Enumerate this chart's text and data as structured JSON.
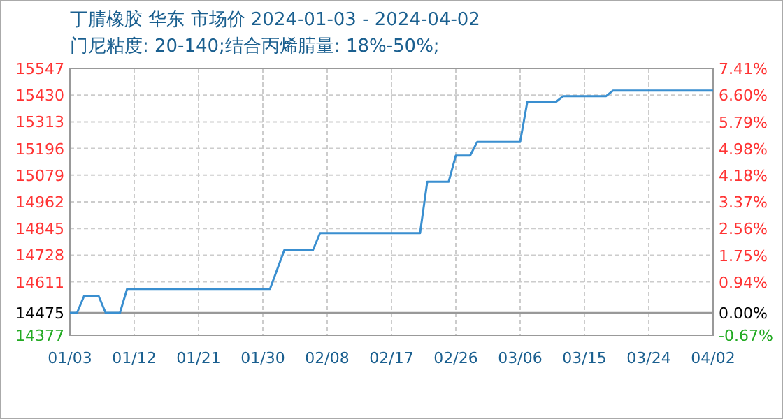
{
  "chart_data": {
    "type": "line",
    "title": "丁腈橡胶 华东 市场价 2024-01-03 - 2024-04-02",
    "subtitle": "门尼粘度: 20-140;结合丙烯腈量: 18%-50%;",
    "x": [
      "2024-01-03",
      "2024-01-04",
      "2024-01-05",
      "2024-01-07",
      "2024-01-08",
      "2024-01-10",
      "2024-01-11",
      "2024-01-31",
      "2024-02-02",
      "2024-02-06",
      "2024-02-07",
      "2024-02-21",
      "2024-02-22",
      "2024-02-25",
      "2024-02-26",
      "2024-02-28",
      "2024-02-29",
      "2024-03-06",
      "2024-03-07",
      "2024-03-11",
      "2024-03-12",
      "2024-03-18",
      "2024-03-19",
      "2024-04-02"
    ],
    "series": [
      {
        "color": "#3a8fd0",
        "values": [
          14475,
          14475,
          14550,
          14550,
          14475,
          14475,
          14580,
          14580,
          14750,
          14750,
          14825,
          14825,
          15050,
          15050,
          15165,
          15165,
          15225,
          15225,
          15400,
          15400,
          15425,
          15425,
          15450,
          15450
        ]
      }
    ],
    "xlim": [
      "2024-01-03",
      "2024-04-02"
    ],
    "xticks": [
      {
        "value": "2024-01-03",
        "label": "01/03"
      },
      {
        "value": "2024-01-12",
        "label": "01/12"
      },
      {
        "value": "2024-01-21",
        "label": "01/21"
      },
      {
        "value": "2024-01-30",
        "label": "01/30"
      },
      {
        "value": "2024-02-08",
        "label": "02/08"
      },
      {
        "value": "2024-02-17",
        "label": "02/17"
      },
      {
        "value": "2024-02-26",
        "label": "02/26"
      },
      {
        "value": "2024-03-06",
        "label": "03/06"
      },
      {
        "value": "2024-03-15",
        "label": "03/15"
      },
      {
        "value": "2024-03-24",
        "label": "03/24"
      },
      {
        "value": "2024-04-02",
        "label": "04/02"
      }
    ],
    "ylim": [
      14377,
      15547
    ],
    "yticks": [
      14377,
      14475,
      14611,
      14728,
      14845,
      14962,
      15079,
      15196,
      15313,
      15430,
      15547
    ],
    "y2lim": [
      -0.67,
      7.41
    ],
    "y2ticks": [
      {
        "value": -0.67,
        "label": "-0.67%"
      },
      {
        "value": 0,
        "label": "0.00%"
      },
      {
        "value": 0.94,
        "label": "0.94%"
      },
      {
        "value": 1.75,
        "label": "1.75%"
      },
      {
        "value": 2.56,
        "label": "2.56%"
      },
      {
        "value": 3.37,
        "label": "3.37%"
      },
      {
        "value": 4.18,
        "label": "4.18%"
      },
      {
        "value": 4.98,
        "label": "4.98%"
      },
      {
        "value": 5.79,
        "label": "5.79%"
      },
      {
        "value": 6.6,
        "label": "6.60%"
      },
      {
        "value": 7.41,
        "label": "7.41%"
      }
    ],
    "ref_lines": [
      {
        "axis": "y",
        "value": 14475,
        "color": "#999999",
        "line_style": "solid"
      }
    ],
    "grid": true,
    "marker": "none",
    "line_style": "solid"
  }
}
